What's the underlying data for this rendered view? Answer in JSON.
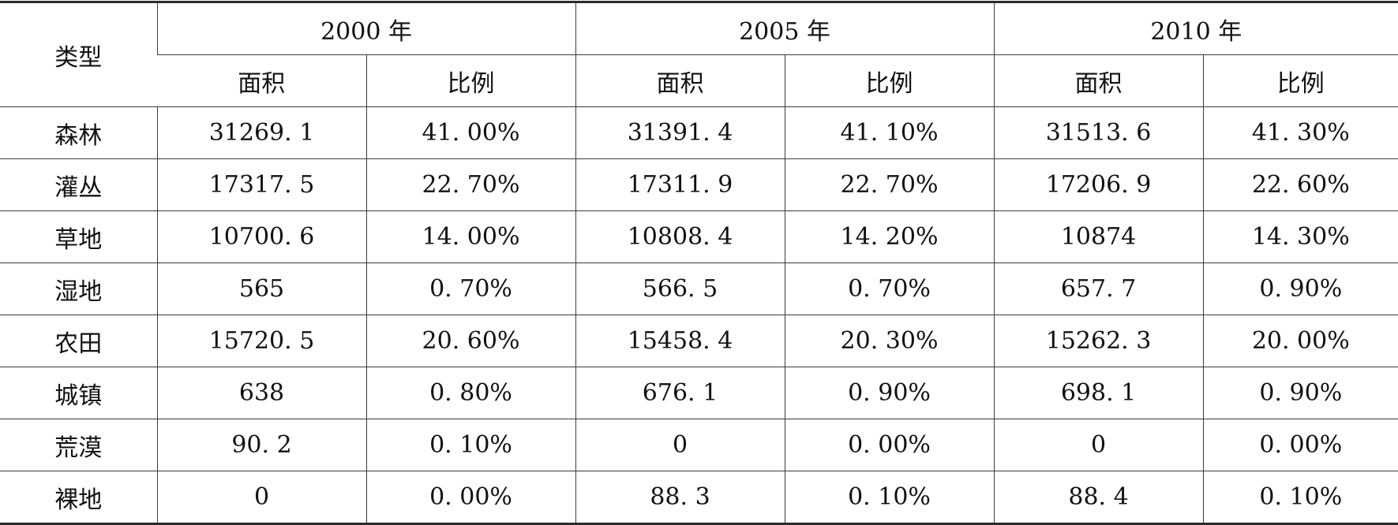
{
  "table": {
    "type_header": "类型",
    "years": [
      "2000 年",
      "2005 年",
      "2010 年"
    ],
    "sub_headers": [
      "面积",
      "比例"
    ],
    "rows": [
      {
        "type": "森林",
        "cells": [
          "31269. 1",
          "41. 00%",
          "31391. 4",
          "41. 10%",
          "31513. 6",
          "41. 30%"
        ]
      },
      {
        "type": "灌丛",
        "cells": [
          "17317. 5",
          "22. 70%",
          "17311. 9",
          "22. 70%",
          "17206. 9",
          "22. 60%"
        ]
      },
      {
        "type": "草地",
        "cells": [
          "10700. 6",
          "14. 00%",
          "10808. 4",
          "14. 20%",
          "10874",
          "14. 30%"
        ]
      },
      {
        "type": "湿地",
        "cells": [
          "565",
          "0. 70%",
          "566. 5",
          "0. 70%",
          "657. 7",
          "0. 90%"
        ]
      },
      {
        "type": "农田",
        "cells": [
          "15720. 5",
          "20. 60%",
          "15458. 4",
          "20. 30%",
          "15262. 3",
          "20. 00%"
        ]
      },
      {
        "type": "城镇",
        "cells": [
          "638",
          "0. 80%",
          "676. 1",
          "0. 90%",
          "698. 1",
          "0. 90%"
        ]
      },
      {
        "type": "荒漠",
        "cells": [
          "90. 2",
          "0. 10%",
          "0",
          "0. 00%",
          "0",
          "0. 00%"
        ]
      },
      {
        "type": "裸地",
        "cells": [
          "0",
          "0. 00%",
          "88. 3",
          "0. 10%",
          "88. 4",
          "0. 10%"
        ]
      }
    ]
  }
}
